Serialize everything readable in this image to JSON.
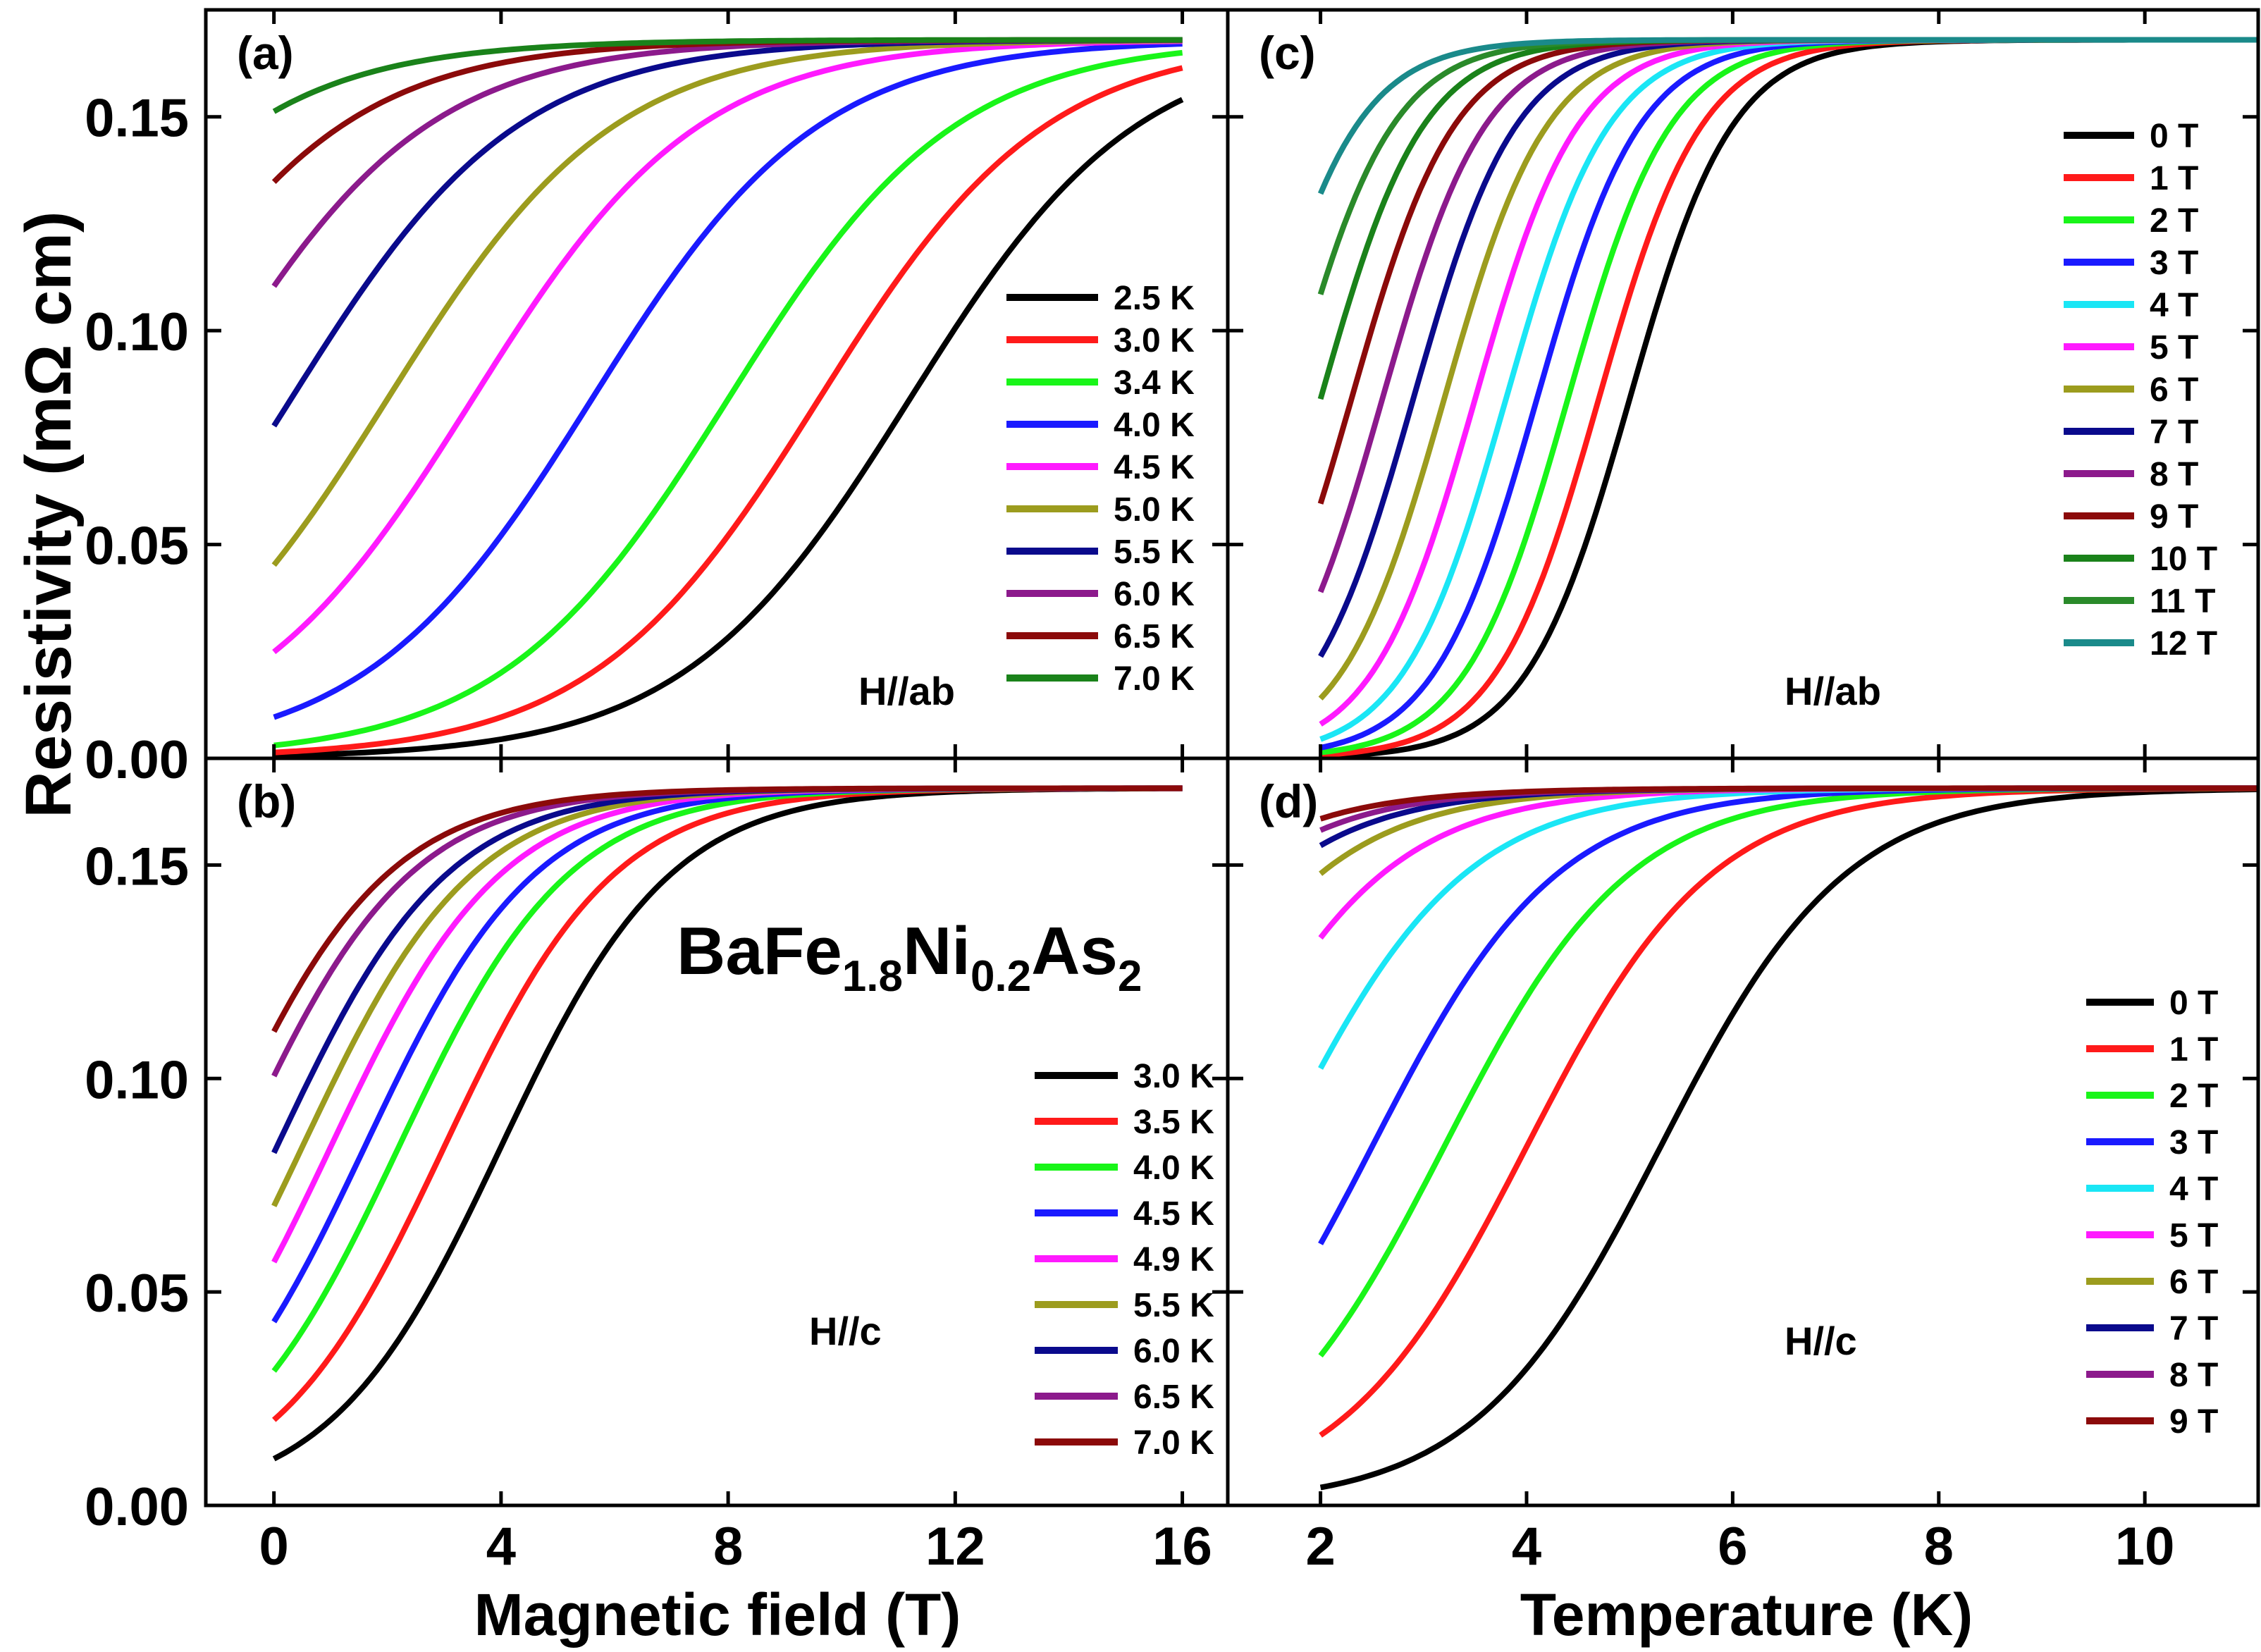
{
  "figure": {
    "ylabel": "Resistivity (mΩ cm)",
    "xlabel_left": "Magnetic field (T)",
    "xlabel_right": "Temperature (K)",
    "compound": {
      "base": "BaFe",
      "s1": "1.8",
      "mid": "Ni",
      "s2": "0.2",
      "end": "As",
      "s3": "2"
    }
  },
  "chart_data": [
    {
      "id": "a",
      "label": "(a)",
      "type": "line",
      "field_label": "H//ab",
      "xlabel": "Magnetic field (T)",
      "ylabel": "Resistivity (mΩ cm)",
      "xlim": [
        -1.2,
        16.8
      ],
      "ylim": [
        0,
        0.175
      ],
      "xticks": [
        "0",
        "4",
        "8",
        "12",
        "16"
      ],
      "yticks": [
        "0.00",
        "0.05",
        "0.10",
        "0.15"
      ],
      "x_range": [
        0,
        16
      ],
      "rho_n": 0.168,
      "width": 2.0,
      "series": [
        {
          "name": "2.5 K",
          "color": "#000000",
          "mid": 11.2
        },
        {
          "name": "3.0 K",
          "color": "#ff1a1a",
          "mid": 9.6
        },
        {
          "name": "3.4 K",
          "color": "#19f519",
          "mid": 8.0
        },
        {
          "name": "4.0 K",
          "color": "#1a1aff",
          "mid": 5.6
        },
        {
          "name": "4.5 K",
          "color": "#ff1aff",
          "mid": 3.5
        },
        {
          "name": "5.0 K",
          "color": "#9c9c1e",
          "mid": 2.0
        },
        {
          "name": "5.5 K",
          "color": "#0a0a8c",
          "mid": 0.3
        },
        {
          "name": "6.0 K",
          "color": "#8c1a8c",
          "mid": -1.3
        },
        {
          "name": "6.5 K",
          "color": "#8b0a0a",
          "mid": -2.8
        },
        {
          "name": "7.0 K",
          "color": "#1a821a",
          "mid": -4.4
        }
      ]
    },
    {
      "id": "b",
      "label": "(b)",
      "type": "line",
      "field_label": "H//c",
      "xlabel": "Magnetic field (T)",
      "ylabel": "Resistivity (mΩ cm)",
      "xlim": [
        -1.2,
        16.8
      ],
      "ylim": [
        0,
        0.175
      ],
      "xticks": [
        "0",
        "4",
        "8",
        "12",
        "16"
      ],
      "yticks": [
        "0.00",
        "0.05",
        "0.10",
        "0.15"
      ],
      "x_range": [
        0,
        16
      ],
      "rho_n": 0.168,
      "width": 1.5,
      "series": [
        {
          "name": "3.0 K",
          "color": "#000000",
          "mid": 4.0
        },
        {
          "name": "3.5 K",
          "color": "#ff1a1a",
          "mid": 3.0
        },
        {
          "name": "4.0 K",
          "color": "#19f519",
          "mid": 2.2
        },
        {
          "name": "4.5 K",
          "color": "#1a1aff",
          "mid": 1.6
        },
        {
          "name": "4.9 K",
          "color": "#ff1aff",
          "mid": 1.0
        },
        {
          "name": "5.5 K",
          "color": "#9c9c1e",
          "mid": 0.5
        },
        {
          "name": "6.0 K",
          "color": "#0a0a8c",
          "mid": 0.05
        },
        {
          "name": "6.5 K",
          "color": "#8c1a8c",
          "mid": -0.6
        },
        {
          "name": "7.0 K",
          "color": "#8b0a0a",
          "mid": -1.0
        }
      ]
    },
    {
      "id": "c",
      "label": "(c)",
      "type": "line",
      "field_label": "H//ab",
      "xlabel": "Temperature (K)",
      "ylabel": "Resistivity (mΩ cm)",
      "xlim": [
        1.1,
        11.1
      ],
      "ylim": [
        0,
        0.175
      ],
      "xticks": [
        "2",
        "4",
        "6",
        "8",
        "10"
      ],
      "yticks": [
        "0.00",
        "0.05",
        "0.10",
        "0.15"
      ],
      "x_range": [
        2,
        11.1
      ],
      "rho_n": 0.168,
      "width": 0.5,
      "series": [
        {
          "name": "0 T",
          "color": "#000000",
          "mid": 5.0
        },
        {
          "name": "1 T",
          "color": "#ff1a1a",
          "mid": 4.7
        },
        {
          "name": "2 T",
          "color": "#19f519",
          "mid": 4.4
        },
        {
          "name": "3 T",
          "color": "#1a1aff",
          "mid": 4.1
        },
        {
          "name": "4 T",
          "color": "#1ae6f5",
          "mid": 3.8
        },
        {
          "name": "5 T",
          "color": "#ff1aff",
          "mid": 3.5
        },
        {
          "name": "6 T",
          "color": "#9c9c1e",
          "mid": 3.2
        },
        {
          "name": "7 T",
          "color": "#0a0a8c",
          "mid": 2.9
        },
        {
          "name": "8 T",
          "color": "#8c1a8c",
          "mid": 2.6
        },
        {
          "name": "9 T",
          "color": "#8b0a0a",
          "mid": 2.3
        },
        {
          "name": "10 T",
          "color": "#1a821a",
          "mid": 2.0
        },
        {
          "name": "11 T",
          "color": "#2a8a2a",
          "mid": 1.7
        },
        {
          "name": "12 T",
          "color": "#1a8a8a",
          "mid": 1.35
        }
      ]
    },
    {
      "id": "d",
      "label": "(d)",
      "type": "line",
      "field_label": "H//c",
      "xlabel": "Temperature (K)",
      "ylabel": "Resistivity (mΩ cm)",
      "xlim": [
        1.1,
        11.1
      ],
      "ylim": [
        0,
        0.175
      ],
      "xticks": [
        "2",
        "4",
        "6",
        "8",
        "10"
      ],
      "yticks": [
        "0.00",
        "0.05",
        "0.10",
        "0.15"
      ],
      "x_range": [
        2,
        11.1
      ],
      "rho_n": 0.168,
      "width": 0.9,
      "series": [
        {
          "name": "0 T",
          "color": "#000000",
          "mid": 5.3
        },
        {
          "name": "1 T",
          "color": "#ff1a1a",
          "mid": 4.0
        },
        {
          "name": "2 T",
          "color": "#19f519",
          "mid": 3.2
        },
        {
          "name": "3 T",
          "color": "#1a1aff",
          "mid": 2.5
        },
        {
          "name": "4 T",
          "color": "#1ae6f5",
          "mid": 1.6
        },
        {
          "name": "5 T",
          "color": "#ff1aff",
          "mid": 0.8
        },
        {
          "name": "6 T",
          "color": "#9c9c1e",
          "mid": 0.2
        },
        {
          "name": "7 T",
          "color": "#0a0a8c",
          "mid": -0.2
        },
        {
          "name": "8 T",
          "color": "#8c1a8c",
          "mid": -0.5
        },
        {
          "name": "9 T",
          "color": "#8b0a0a",
          "mid": -0.8
        }
      ]
    }
  ]
}
